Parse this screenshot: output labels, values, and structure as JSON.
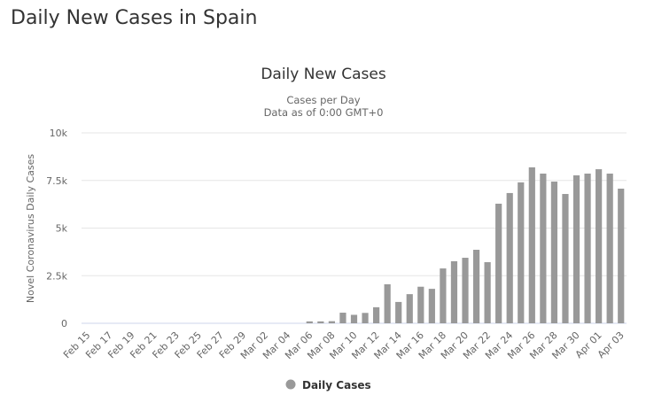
{
  "page": {
    "title": "Daily New Cases in Spain"
  },
  "chart_data": {
    "type": "bar",
    "title": "Daily New Cases",
    "subtitle_1": "Cases per Day",
    "subtitle_2": "Data as of 0:00 GMT+0",
    "ylabel": "Novel Coronavirus Daily Cases",
    "xlabel": "",
    "ylim": [
      0,
      10000
    ],
    "yticks": [
      0,
      2500,
      5000,
      7500,
      10000
    ],
    "ytick_labels": [
      "0",
      "2.5k",
      "5k",
      "7.5k",
      "10k"
    ],
    "legend": {
      "label": "Daily Cases",
      "placement": "bottom-center"
    },
    "bar_color": "#999999",
    "categories": [
      "Feb 15",
      "Feb 16",
      "Feb 17",
      "Feb 18",
      "Feb 19",
      "Feb 20",
      "Feb 21",
      "Feb 22",
      "Feb 23",
      "Feb 24",
      "Feb 25",
      "Feb 26",
      "Feb 27",
      "Feb 28",
      "Feb 29",
      "Mar 01",
      "Mar 02",
      "Mar 03",
      "Mar 04",
      "Mar 05",
      "Mar 06",
      "Mar 07",
      "Mar 08",
      "Mar 09",
      "Mar 10",
      "Mar 11",
      "Mar 12",
      "Mar 13",
      "Mar 14",
      "Mar 15",
      "Mar 16",
      "Mar 17",
      "Mar 18",
      "Mar 19",
      "Mar 20",
      "Mar 21",
      "Mar 22",
      "Mar 23",
      "Mar 24",
      "Mar 25",
      "Mar 26",
      "Mar 27",
      "Mar 28",
      "Mar 29",
      "Mar 30",
      "Mar 31",
      "Apr 01",
      "Apr 02",
      "Apr 03"
    ],
    "values": [
      0,
      0,
      0,
      0,
      0,
      0,
      0,
      0,
      0,
      0,
      0,
      0,
      0,
      0,
      0,
      0,
      0,
      0,
      0,
      0,
      100,
      100,
      110,
      557,
      444,
      545,
      843,
      2050,
      1120,
      1530,
      1920,
      1810,
      2880,
      3260,
      3440,
      3860,
      3210,
      6280,
      6840,
      7400,
      8190,
      7860,
      7440,
      6790,
      7770,
      7860,
      8090,
      7860,
      7070
    ]
  }
}
